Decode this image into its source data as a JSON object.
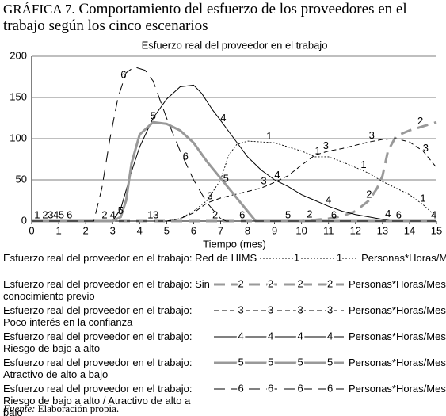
{
  "chart_data": {
    "type": "line",
    "figure_label": "GRÁFICA 7.",
    "title": "Comportamiento del esfuerzo de los proveedores en el trabajo según los cinco escenarios",
    "subtitle": "Esfuerzo real del proveedor en el trabajo",
    "x_label": "Tiempo (mes)",
    "unit": "Personas*Horas/Mes",
    "xlim": [
      0,
      15
    ],
    "xticks": [
      0,
      1,
      2,
      3,
      4,
      5,
      6,
      7,
      8,
      9,
      10,
      11,
      12,
      13,
      14,
      15
    ],
    "ylim": [
      0,
      200
    ],
    "yticks": [
      0,
      50,
      100,
      150,
      200
    ],
    "grid": true,
    "series": [
      {
        "name": "Esfuerzo real del proveedor en el trabajo: Red de HIMS",
        "label": "1",
        "color": "#000000",
        "line_style": "dotted",
        "line_width": 0.9,
        "x": [
          0,
          5,
          5.5,
          6,
          6.5,
          7,
          7.3,
          7.6,
          8,
          9,
          9.5,
          10,
          10.5,
          11,
          11.5,
          12,
          12.5,
          13,
          13.5,
          14,
          14.5,
          15
        ],
        "values": [
          0,
          0,
          3,
          12,
          25,
          50,
          80,
          93,
          97,
          95,
          90,
          85,
          78,
          78,
          72,
          65,
          58,
          48,
          40,
          32,
          20,
          5
        ]
      },
      {
        "name": "Esfuerzo real del proveedor en el trabajo: Sin conocimiento previo",
        "label": "2",
        "color": "#999999",
        "line_style": "longdash",
        "line_width": 3,
        "x": [
          0,
          10,
          11,
          11.5,
          12,
          12.5,
          12.8,
          13,
          13.2,
          13.5,
          14,
          14.5,
          15
        ],
        "values": [
          0,
          0,
          3,
          6,
          12,
          25,
          40,
          55,
          85,
          103,
          110,
          115,
          120
        ]
      },
      {
        "name": "Esfuerzo real del proveedor en el trabajo: Poco interés en la confianza",
        "label": "3",
        "color": "#000000",
        "line_style": "dashed",
        "line_width": 1,
        "x": [
          0,
          5,
          5.5,
          6,
          6.5,
          7,
          7.5,
          8,
          8.5,
          9,
          9.5,
          10,
          10.5,
          11,
          11.5,
          12,
          12.5,
          13,
          13.5,
          14,
          14.5,
          15
        ],
        "values": [
          0,
          0,
          3,
          10,
          22,
          28,
          32,
          36,
          40,
          47,
          55,
          68,
          80,
          85,
          88,
          92,
          96,
          99,
          100,
          96,
          85,
          65
        ]
      },
      {
        "name": "Esfuerzo real del proveedor en el trabajo: Riesgo de bajo a alto",
        "label": "4",
        "color": "#000000",
        "line_style": "solid",
        "line_width": 1,
        "x": [
          0,
          3,
          3.3,
          3.7,
          4,
          4.5,
          5,
          5.5,
          6,
          6.3,
          6.7,
          7,
          7.5,
          8,
          8.5,
          9,
          9.5,
          10,
          10.5,
          11,
          11.5,
          12,
          12.5,
          13,
          13.5,
          15
        ],
        "values": [
          0,
          0,
          15,
          60,
          90,
          125,
          148,
          163,
          165,
          155,
          135,
          122,
          100,
          78,
          62,
          50,
          42,
          32,
          25,
          18,
          12,
          8,
          5,
          2,
          0,
          0
        ]
      },
      {
        "name": "Esfuerzo real del proveedor en el trabajo: Atractivo de alto a bajo",
        "label": "5",
        "color": "#999999",
        "line_style": "solid",
        "line_width": 3,
        "x": [
          0,
          3,
          3.3,
          3.5,
          3.7,
          4,
          4.5,
          5,
          5.5,
          6,
          6.5,
          7,
          7.5,
          8,
          8.3,
          15
        ],
        "values": [
          0,
          0,
          5,
          25,
          70,
          105,
          120,
          118,
          110,
          95,
          72,
          52,
          32,
          12,
          0,
          0
        ]
      },
      {
        "name": "Esfuerzo real del proveedor en el trabajo: Riesgo de bajo a alto / Atractivo de alto a bajo",
        "label": "6",
        "color": "#000000",
        "line_style": "longdash",
        "line_width": 1,
        "x": [
          0,
          2.3,
          2.6,
          2.9,
          3.2,
          3.5,
          3.8,
          4.2,
          4.5,
          5,
          5.5,
          6,
          6.5,
          7,
          7.2,
          15
        ],
        "values": [
          0,
          0,
          40,
          100,
          150,
          180,
          187,
          183,
          170,
          125,
          85,
          50,
          22,
          3,
          0,
          0
        ]
      }
    ],
    "source_label": "Fuente:",
    "source": "Elaboración propia."
  }
}
